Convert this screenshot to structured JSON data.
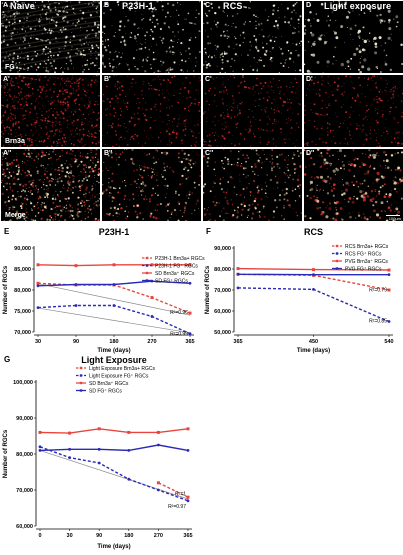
{
  "figure": {
    "tiles": [
      {
        "id": "A",
        "label": "A",
        "title": "Naïve",
        "row": 0,
        "col": 0,
        "kind": "fg",
        "row_label": "FG"
      },
      {
        "id": "B",
        "label": "B",
        "title": "P23H-1",
        "row": 0,
        "col": 1,
        "kind": "fg",
        "row_label": ""
      },
      {
        "id": "C",
        "label": "C",
        "title": "RCS",
        "row": 0,
        "col": 2,
        "kind": "fg",
        "row_label": ""
      },
      {
        "id": "D",
        "label": "D",
        "title": "Light exposure",
        "row": 0,
        "col": 3,
        "kind": "fg",
        "row_label": ""
      },
      {
        "id": "A1",
        "label": "A'",
        "title": "",
        "row": 1,
        "col": 0,
        "kind": "brn",
        "row_label": "Brn3a"
      },
      {
        "id": "B1",
        "label": "B'",
        "title": "",
        "row": 1,
        "col": 1,
        "kind": "brn",
        "row_label": ""
      },
      {
        "id": "C1",
        "label": "C'",
        "title": "",
        "row": 1,
        "col": 2,
        "kind": "brn",
        "row_label": ""
      },
      {
        "id": "D1",
        "label": "D'",
        "title": "",
        "row": 1,
        "col": 3,
        "kind": "brn",
        "row_label": ""
      },
      {
        "id": "A2",
        "label": "A''",
        "title": "",
        "row": 2,
        "col": 0,
        "kind": "merge",
        "row_label": "Merge"
      },
      {
        "id": "B2",
        "label": "B''",
        "title": "",
        "row": 2,
        "col": 1,
        "kind": "merge",
        "row_label": ""
      },
      {
        "id": "C2",
        "label": "C''",
        "title": "",
        "row": 2,
        "col": 2,
        "kind": "merge",
        "row_label": ""
      },
      {
        "id": "D2",
        "label": "D''",
        "title": "",
        "row": 2,
        "col": 3,
        "kind": "merge",
        "row_label": ""
      }
    ],
    "scale_bar_label": "100µm",
    "colors": {
      "fg": "#f2eed8",
      "brn": "#d42a2a",
      "merge": "#f2e0b0",
      "background": "#000000"
    }
  },
  "chart_data": [
    {
      "panel": "E",
      "type": "line",
      "title": "P23H-1",
      "xlabel": "Time (days)",
      "ylabel": "Number of RGCs",
      "x_categories": [
        "30",
        "90",
        "180",
        "270",
        "365"
      ],
      "yticks": [
        "70,000",
        "75,000",
        "80,000",
        "85,000",
        "90,000"
      ],
      "ylim": [
        70000,
        90000
      ],
      "legend": "top-right",
      "series": [
        {
          "name": "P23H-1  Brn3a+ RGCs",
          "color": "#e8463c",
          "dash": true,
          "values": [
            81600,
            81200,
            81200,
            78200,
            74500
          ]
        },
        {
          "name": "P23H-1 FG⁺ RGCs",
          "color": "#2a2ab8",
          "dash": true,
          "values": [
            75800,
            76300,
            76300,
            73700,
            69600
          ]
        },
        {
          "name": "SD Brn3a⁺ RGCs",
          "color": "#e8463c",
          "dash": false,
          "values": [
            86000,
            85800,
            86000,
            86000,
            86000
          ]
        },
        {
          "name": "SD FG⁺ RGCs",
          "color": "#2a2ab8",
          "dash": false,
          "values": [
            81000,
            81300,
            81300,
            82100,
            81600
          ]
        }
      ],
      "trend_lines": [
        {
          "from": [
            0,
            81500
          ],
          "to": [
            4,
            74000
          ]
        },
        {
          "from": [
            0,
            75700
          ],
          "to": [
            4,
            69800
          ]
        }
      ],
      "annotations": [
        {
          "text": "R²=0.96",
          "x": 4,
          "y": 74800
        },
        {
          "text": "R²=0.99",
          "x": 4,
          "y": 69600
        }
      ]
    },
    {
      "panel": "F",
      "type": "line",
      "title": "RCS",
      "xlabel": "Time (days)",
      "ylabel": "Number of RGCs",
      "x_categories": [
        "365",
        "450",
        "540"
      ],
      "yticks": [
        "50,000",
        "60,000",
        "70,000",
        "80,000",
        "90,000"
      ],
      "ylim": [
        50000,
        90000
      ],
      "legend": "top-right",
      "series": [
        {
          "name": "RCS  Brn3a+ RGCs",
          "color": "#e8463c",
          "dash": true,
          "values": [
            77500,
            77000,
            70000
          ]
        },
        {
          "name": "RCS FG⁺ RGCs",
          "color": "#2a2ab8",
          "dash": true,
          "values": [
            71000,
            70300,
            55000
          ]
        },
        {
          "name": "PVG Brn3a⁺ RGCs",
          "color": "#e8463c",
          "dash": false,
          "values": [
            80200,
            79700,
            79500
          ]
        },
        {
          "name": "PVG FG⁺ RGCs",
          "color": "#2a2ab8",
          "dash": false,
          "values": [
            77500,
            77300,
            77300
          ]
        }
      ],
      "trend_lines": [],
      "annotations": [
        {
          "text": "R²=0.79",
          "x": 2,
          "y": 70200
        },
        {
          "text": "R²=0.85",
          "x": 2,
          "y": 55500
        }
      ]
    },
    {
      "panel": "G",
      "type": "line",
      "title": "Light Exposure",
      "xlabel": "Time (days)",
      "ylabel": "Number of RGCs",
      "x_categories": [
        "0",
        "30",
        "90",
        "180",
        "270",
        "365"
      ],
      "yticks": [
        "60,000",
        "70,000",
        "80,000",
        "90,000",
        "100,000"
      ],
      "ylim": [
        60000,
        100000
      ],
      "legend": "top-right",
      "series": [
        {
          "name": "Light Exposure  Brn3a+ RGCs",
          "color": "#e8463c",
          "dash": true,
          "values": [
            null,
            null,
            null,
            null,
            72000,
            68000
          ]
        },
        {
          "name": "Light Exposure FG⁺ RGCs",
          "color": "#2a2ab8",
          "dash": true,
          "values": [
            82000,
            79000,
            77500,
            73000,
            70000,
            67000
          ]
        },
        {
          "name": "SD Brn3a⁺ RGCs",
          "color": "#e8463c",
          "dash": false,
          "values": [
            86000,
            85800,
            87000,
            86000,
            86000,
            87000
          ]
        },
        {
          "name": "SD FG⁺ RGCs",
          "color": "#2a2ab8",
          "dash": false,
          "values": [
            81000,
            81300,
            81300,
            81000,
            82500,
            81000
          ]
        }
      ],
      "trend_lines": [
        {
          "from": [
            0,
            81000
          ],
          "to": [
            5,
            67500
          ]
        }
      ],
      "annotations": [
        {
          "text": "R²=1",
          "x": 5,
          "y": 69000
        },
        {
          "text": "R²=0.97",
          "x": 5,
          "y": 65500
        }
      ]
    }
  ]
}
